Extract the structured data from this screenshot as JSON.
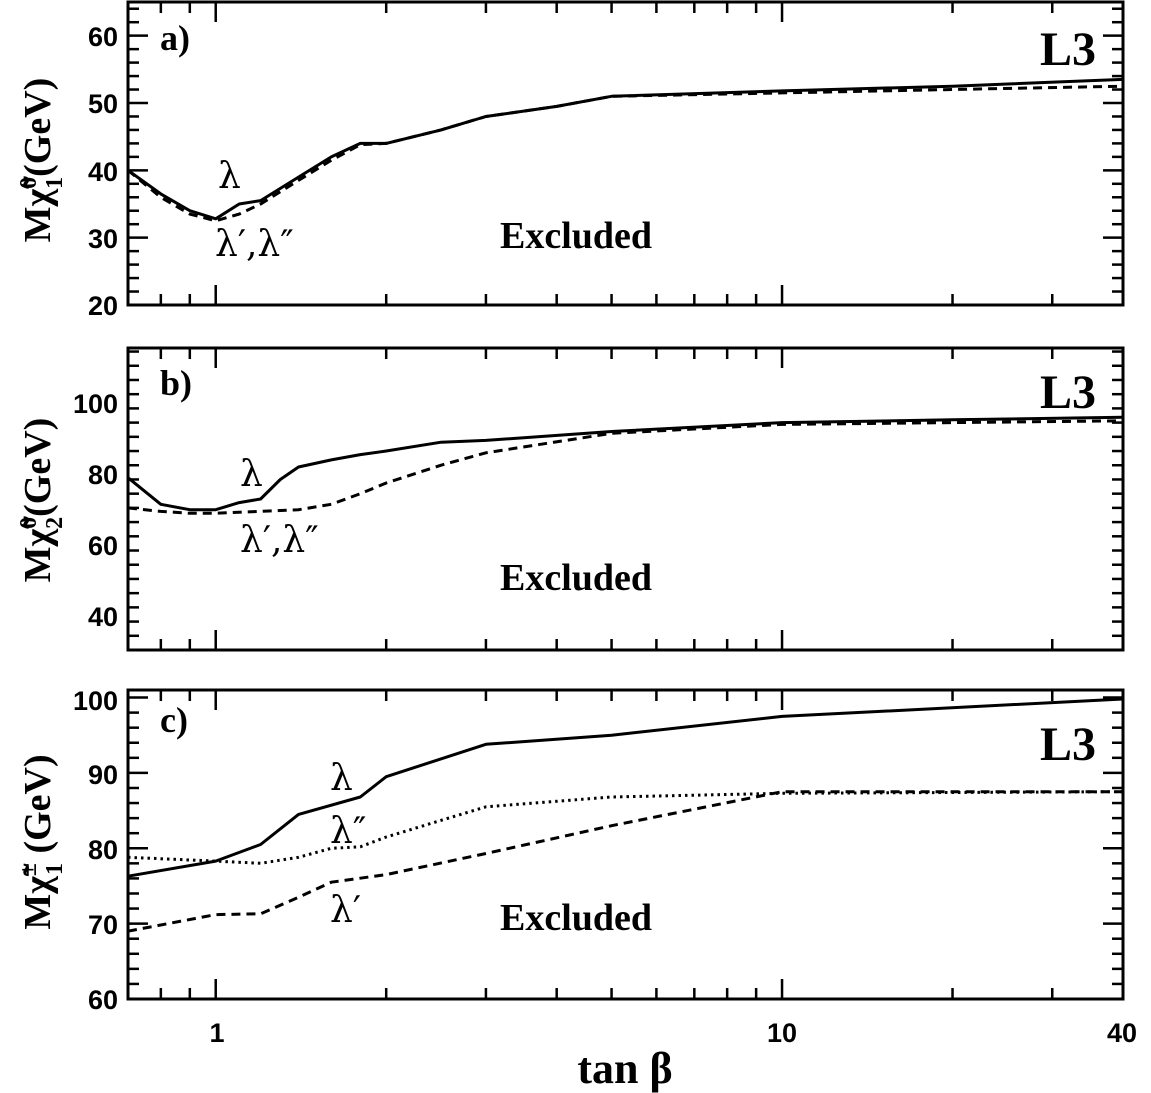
{
  "chart_data": [
    {
      "type": "line",
      "panel_label": "a)",
      "brand": "L3",
      "region_label": "Excluded",
      "xscale": "log",
      "xlim": [
        0.7,
        40
      ],
      "ylim": [
        20,
        65
      ],
      "yticks": [
        "20",
        "30",
        "40",
        "50",
        "60"
      ],
      "ylabel_main": "M",
      "ylabel_sym": "χ̃",
      "ylabel_sup": "0",
      "ylabel_sub": "1",
      "ylabel_unit": "(GeV)",
      "series": [
        {
          "name": "λ",
          "style": "solid",
          "x": [
            0.7,
            0.8,
            0.9,
            1.0,
            1.1,
            1.2,
            1.4,
            1.6,
            1.8,
            2.0,
            2.5,
            3.0,
            4.0,
            5.0,
            10,
            20,
            40
          ],
          "y": [
            40.0,
            36.5,
            34.0,
            32.8,
            35.0,
            35.5,
            39.0,
            42.0,
            44.0,
            44.0,
            46.0,
            48.0,
            49.5,
            51.0,
            51.8,
            52.5,
            53.5
          ]
        },
        {
          "name": "λ′,λ″",
          "style": "dashed",
          "x": [
            0.7,
            0.8,
            0.9,
            1.0,
            1.1,
            1.2,
            1.4,
            1.6,
            1.8,
            2.0,
            2.5,
            3.0,
            4.0,
            5.0,
            10,
            20,
            40
          ],
          "y": [
            40.0,
            36.0,
            33.5,
            32.5,
            33.5,
            35.0,
            38.5,
            41.5,
            43.8,
            44.0,
            46.0,
            48.0,
            49.5,
            51.0,
            51.5,
            52.0,
            52.5
          ]
        }
      ],
      "curve_labels": [
        "λ",
        "λ′,λ″"
      ]
    },
    {
      "type": "line",
      "panel_label": "b)",
      "brand": "L3",
      "region_label": "Excluded",
      "xscale": "log",
      "xlim": [
        0.7,
        40
      ],
      "ylim": [
        30,
        115
      ],
      "yticks": [
        "40",
        "60",
        "80",
        "100"
      ],
      "ylabel_main": "M",
      "ylabel_sym": "χ̃",
      "ylabel_sup": "0",
      "ylabel_sub": "2",
      "ylabel_unit": "(GeV)",
      "series": [
        {
          "name": "λ",
          "style": "solid",
          "x": [
            0.7,
            0.8,
            0.9,
            1.0,
            1.1,
            1.2,
            1.3,
            1.4,
            1.6,
            1.8,
            2.0,
            2.5,
            3.0,
            5.0,
            10,
            20,
            40
          ],
          "y": [
            78.5,
            71.0,
            69.5,
            69.5,
            71.5,
            72.5,
            78.0,
            81.5,
            83.5,
            85.0,
            86.0,
            88.5,
            89.0,
            91.5,
            94.0,
            94.8,
            95.5
          ]
        },
        {
          "name": "λ′,λ″",
          "style": "dashed",
          "x": [
            0.7,
            0.8,
            0.9,
            1.0,
            1.2,
            1.4,
            1.6,
            1.8,
            2.0,
            2.5,
            3.0,
            5.0,
            10,
            20,
            40
          ],
          "y": [
            70.0,
            69.0,
            68.5,
            68.5,
            69.0,
            69.5,
            71.0,
            74.0,
            77.0,
            82.0,
            85.5,
            91.0,
            93.5,
            94.0,
            94.5
          ]
        }
      ],
      "curve_labels": [
        "λ",
        "λ′,λ″"
      ]
    },
    {
      "type": "line",
      "panel_label": "c)",
      "brand": "L3",
      "region_label": "Excluded",
      "xscale": "log",
      "xlim": [
        0.7,
        40
      ],
      "ylim": [
        60,
        101
      ],
      "yticks": [
        "60",
        "70",
        "80",
        "90",
        "100"
      ],
      "xticks": [
        "1",
        "10",
        "40"
      ],
      "xlabel": "tan β",
      "ylabel_main": "M",
      "ylabel_sym": "χ̃",
      "ylabel_sup": "±",
      "ylabel_sub": "1",
      "ylabel_unit": " (GeV)",
      "series": [
        {
          "name": "λ",
          "style": "solid",
          "x": [
            0.7,
            1.0,
            1.2,
            1.4,
            1.8,
            2.0,
            3.0,
            5.0,
            10,
            40
          ],
          "y": [
            76.3,
            78.3,
            80.5,
            84.5,
            86.8,
            89.5,
            93.8,
            95.0,
            97.5,
            99.8
          ]
        },
        {
          "name": "λ″",
          "style": "dotted",
          "x": [
            0.7,
            1.0,
            1.2,
            1.4,
            1.6,
            1.8,
            2.0,
            3.0,
            5.0,
            10,
            40
          ],
          "y": [
            78.8,
            78.3,
            78.0,
            78.8,
            80.0,
            80.2,
            81.5,
            85.5,
            86.8,
            87.3,
            87.5
          ]
        },
        {
          "name": "λ′",
          "style": "dashed",
          "x": [
            0.7,
            1.0,
            1.2,
            1.4,
            1.6,
            2.0,
            3.0,
            5.0,
            10,
            40
          ],
          "y": [
            69.0,
            71.2,
            71.3,
            73.5,
            75.5,
            76.5,
            79.3,
            83.0,
            87.5,
            87.5
          ]
        }
      ],
      "curve_labels": [
        "λ",
        "λ″",
        "λ′"
      ]
    }
  ]
}
